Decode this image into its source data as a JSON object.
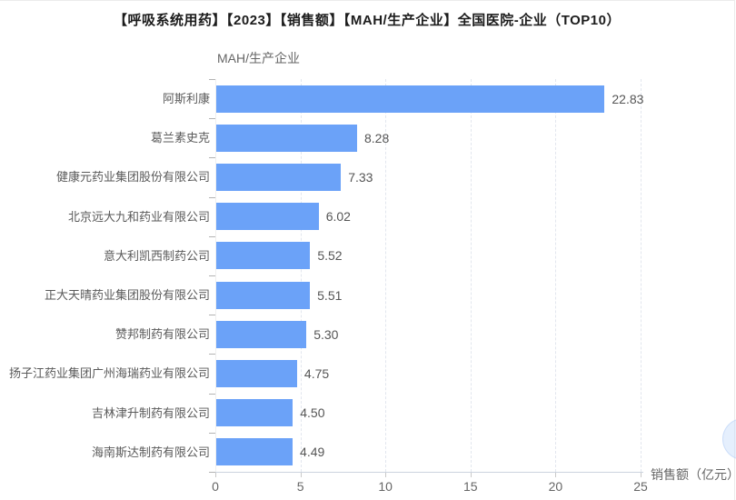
{
  "title": "【呼吸系统用药】【2023】【销售额】【MAH/生产企业】全国医院-企业（TOP10）",
  "chart_data": {
    "type": "bar",
    "orientation": "horizontal",
    "title": "【呼吸系统用药】【2023】【销售额】【MAH/生产企业】全国医院-企业（TOP10）",
    "ylabel": "MAH/生产企业",
    "xlabel": "销售额（亿元）",
    "categories": [
      "阿斯利康",
      "葛兰素史克",
      "健康元药业集团股份有限公司",
      "北京远大九和药业有限公司",
      "意大利凯西制药公司",
      "正大天晴药业集团股份有限公司",
      "赞邦制药有限公司",
      "扬子江药业集团广州海瑞药业有限公司",
      "吉林津升制药有限公司",
      "海南斯达制药有限公司"
    ],
    "values": [
      22.83,
      8.28,
      7.33,
      6.02,
      5.52,
      5.51,
      5.3,
      4.75,
      4.5,
      4.49
    ],
    "value_labels": [
      "22.83",
      "8.28",
      "7.33",
      "6.02",
      "5.52",
      "5.51",
      "5.30",
      "4.75",
      "4.50",
      "4.49"
    ],
    "xlim": [
      0,
      25
    ],
    "xticks": [
      0,
      5,
      10,
      15,
      20,
      25
    ],
    "xtick_labels": [
      "0",
      "5",
      "10",
      "15",
      "20",
      "25"
    ],
    "grid": "vertical-dashed",
    "legend": "none",
    "bar_color": "#6BA2F8"
  },
  "colors": {
    "bar": "#6BA2F8",
    "grid": "#e2e6ee",
    "axis_line": "#ccd3de",
    "text_primary": "#1c1c1c",
    "text_secondary": "#666666"
  }
}
